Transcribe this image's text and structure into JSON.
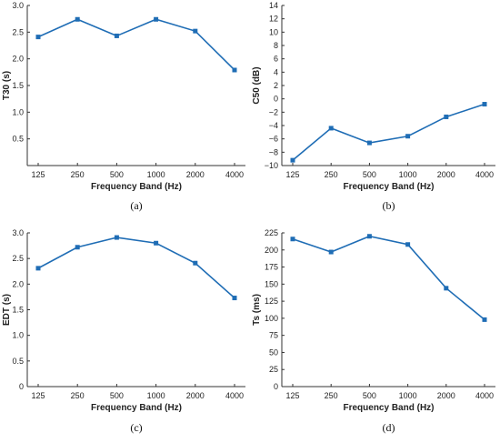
{
  "chart_data": [
    {
      "type": "line",
      "caption": "(a)",
      "categories": [
        "125",
        "250",
        "500",
        "1000",
        "2000",
        "4000"
      ],
      "series": [
        {
          "values": [
            2.41,
            2.74,
            2.43,
            2.74,
            2.52,
            1.79
          ]
        }
      ],
      "xlabel": "Frequency Band (Hz)",
      "ylabel": "T30 (s)",
      "ylim": [
        0,
        3.0
      ],
      "yticks": [
        0.5,
        1.0,
        1.5,
        2.0,
        2.5,
        3.0
      ],
      "ytick_labels": [
        "0.5",
        "1.0",
        "1.5",
        "2.0",
        "2.5",
        "3.0"
      ],
      "grid": false,
      "color": "#1f6db5"
    },
    {
      "type": "line",
      "caption": "(b)",
      "categories": [
        "125",
        "250",
        "500",
        "1000",
        "2000",
        "4000"
      ],
      "series": [
        {
          "values": [
            -9.2,
            -4.4,
            -6.6,
            -5.6,
            -2.7,
            -0.8
          ]
        }
      ],
      "xlabel": "Frequency Band (Hz)",
      "ylabel": "C50 (dB)",
      "ylim": [
        -10,
        14
      ],
      "yticks": [
        -10,
        -8,
        -6,
        -4,
        -2,
        0,
        2,
        4,
        6,
        8,
        10,
        12,
        14
      ],
      "ytick_labels": [
        "−10",
        "−8",
        "−6",
        "−4",
        "−2",
        "0",
        "2",
        "4",
        "6",
        "8",
        "10",
        "12",
        "14"
      ],
      "grid": false,
      "color": "#1f6db5"
    },
    {
      "type": "line",
      "caption": "(c)",
      "categories": [
        "125",
        "250",
        "500",
        "1000",
        "2000",
        "4000"
      ],
      "series": [
        {
          "values": [
            2.31,
            2.72,
            2.91,
            2.8,
            2.41,
            1.73
          ]
        }
      ],
      "xlabel": "Frequency Band (Hz)",
      "ylabel": "EDT (s)",
      "ylim": [
        0,
        3.0
      ],
      "yticks": [
        0,
        0.5,
        1.0,
        1.5,
        2.0,
        2.5,
        3.0
      ],
      "ytick_labels": [
        "0",
        "0.5",
        "1.0",
        "1.5",
        "2.0",
        "2.5",
        "3.0"
      ],
      "grid": false,
      "color": "#1f6db5"
    },
    {
      "type": "line",
      "caption": "(d)",
      "categories": [
        "125",
        "250",
        "500",
        "1000",
        "2000",
        "4000"
      ],
      "series": [
        {
          "values": [
            216,
            197,
            220,
            208,
            144,
            98
          ]
        }
      ],
      "xlabel": "Frequency Band (Hz)",
      "ylabel": "Ts (ms)",
      "ylim": [
        0,
        225
      ],
      "yticks": [
        0,
        25,
        50,
        75,
        100,
        125,
        150,
        175,
        200,
        225
      ],
      "ytick_labels": [
        "0",
        "25",
        "50",
        "75",
        "100",
        "125",
        "150",
        "175",
        "200",
        "225"
      ],
      "grid": false,
      "color": "#1f6db5"
    }
  ]
}
